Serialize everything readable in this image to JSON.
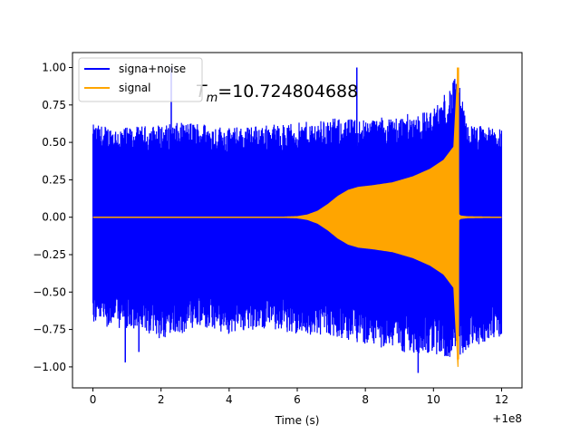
{
  "chart_data": {
    "type": "line",
    "title": "",
    "xlabel": "Time (s)",
    "ylabel": "",
    "x_offset_label": "+1e8",
    "xlim": [
      -0.6,
      12.6
    ],
    "ylim": [
      -1.14,
      1.1
    ],
    "x_ticks": [
      0,
      2,
      4,
      6,
      8,
      10,
      12
    ],
    "x_tick_labels": [
      "0",
      "2",
      "4",
      "6",
      "8",
      "10",
      "12"
    ],
    "y_ticks": [
      -1.0,
      -0.75,
      -0.5,
      -0.25,
      0.0,
      0.25,
      0.5,
      0.75,
      1.0
    ],
    "y_tick_labels": [
      "−1.00",
      "−0.75",
      "−0.50",
      "−0.25",
      "0.00",
      "0.25",
      "0.50",
      "0.75",
      "1.00"
    ],
    "grid": false,
    "legend": {
      "placement": "top-left",
      "entries": [
        {
          "name": "signa+noise",
          "color": "#0000ff"
        },
        {
          "name": "signal",
          "color": "#ffa500"
        }
      ]
    },
    "annotation": {
      "text_main": "T",
      "text_sub": "m",
      "text_rest": "=10.724804688"
    },
    "series": [
      {
        "name": "signa+noise",
        "color": "#0000ff",
        "x_range": [
          0.0,
          12.0
        ],
        "peak_envelope": {
          "x": [
            0,
            1,
            2,
            3,
            4,
            5,
            6,
            7,
            8,
            9,
            10,
            10.7,
            11,
            12
          ],
          "y_max": [
            0.62,
            0.6,
            0.62,
            0.64,
            0.6,
            0.62,
            0.63,
            0.66,
            0.66,
            0.68,
            0.72,
            0.95,
            0.62,
            0.6
          ],
          "y_min": [
            -0.72,
            -0.75,
            -0.82,
            -0.75,
            -0.78,
            -0.75,
            -0.78,
            -0.8,
            -0.85,
            -0.9,
            -0.92,
            -0.95,
            -0.88,
            -0.8
          ]
        },
        "spikes": [
          {
            "x": 0.95,
            "y": -0.97
          },
          {
            "x": 1.35,
            "y": -0.9
          },
          {
            "x": 2.3,
            "y": 1.0
          },
          {
            "x": 7.75,
            "y": 1.0
          },
          {
            "x": 9.55,
            "y": -1.04
          },
          {
            "x": 11.05,
            "y": -0.85
          },
          {
            "x": 11.5,
            "y": -0.83
          }
        ]
      },
      {
        "name": "signal",
        "color": "#ffa500",
        "envelope": {
          "x": [
            0,
            5.5,
            6.0,
            6.3,
            6.6,
            6.9,
            7.2,
            7.5,
            7.8,
            8.2,
            8.8,
            9.4,
            9.9,
            10.3,
            10.6,
            10.72,
            10.73,
            10.8,
            11,
            12
          ],
          "amplitude": [
            0,
            0.0,
            0.004,
            0.015,
            0.04,
            0.085,
            0.14,
            0.18,
            0.2,
            0.21,
            0.23,
            0.27,
            0.32,
            0.38,
            0.47,
            1.0,
            0.02,
            0.008,
            0.003,
            0
          ]
        },
        "chirp_peak": {
          "x": 10.72,
          "y_max": 1.0,
          "y_min": -0.95
        }
      }
    ]
  }
}
